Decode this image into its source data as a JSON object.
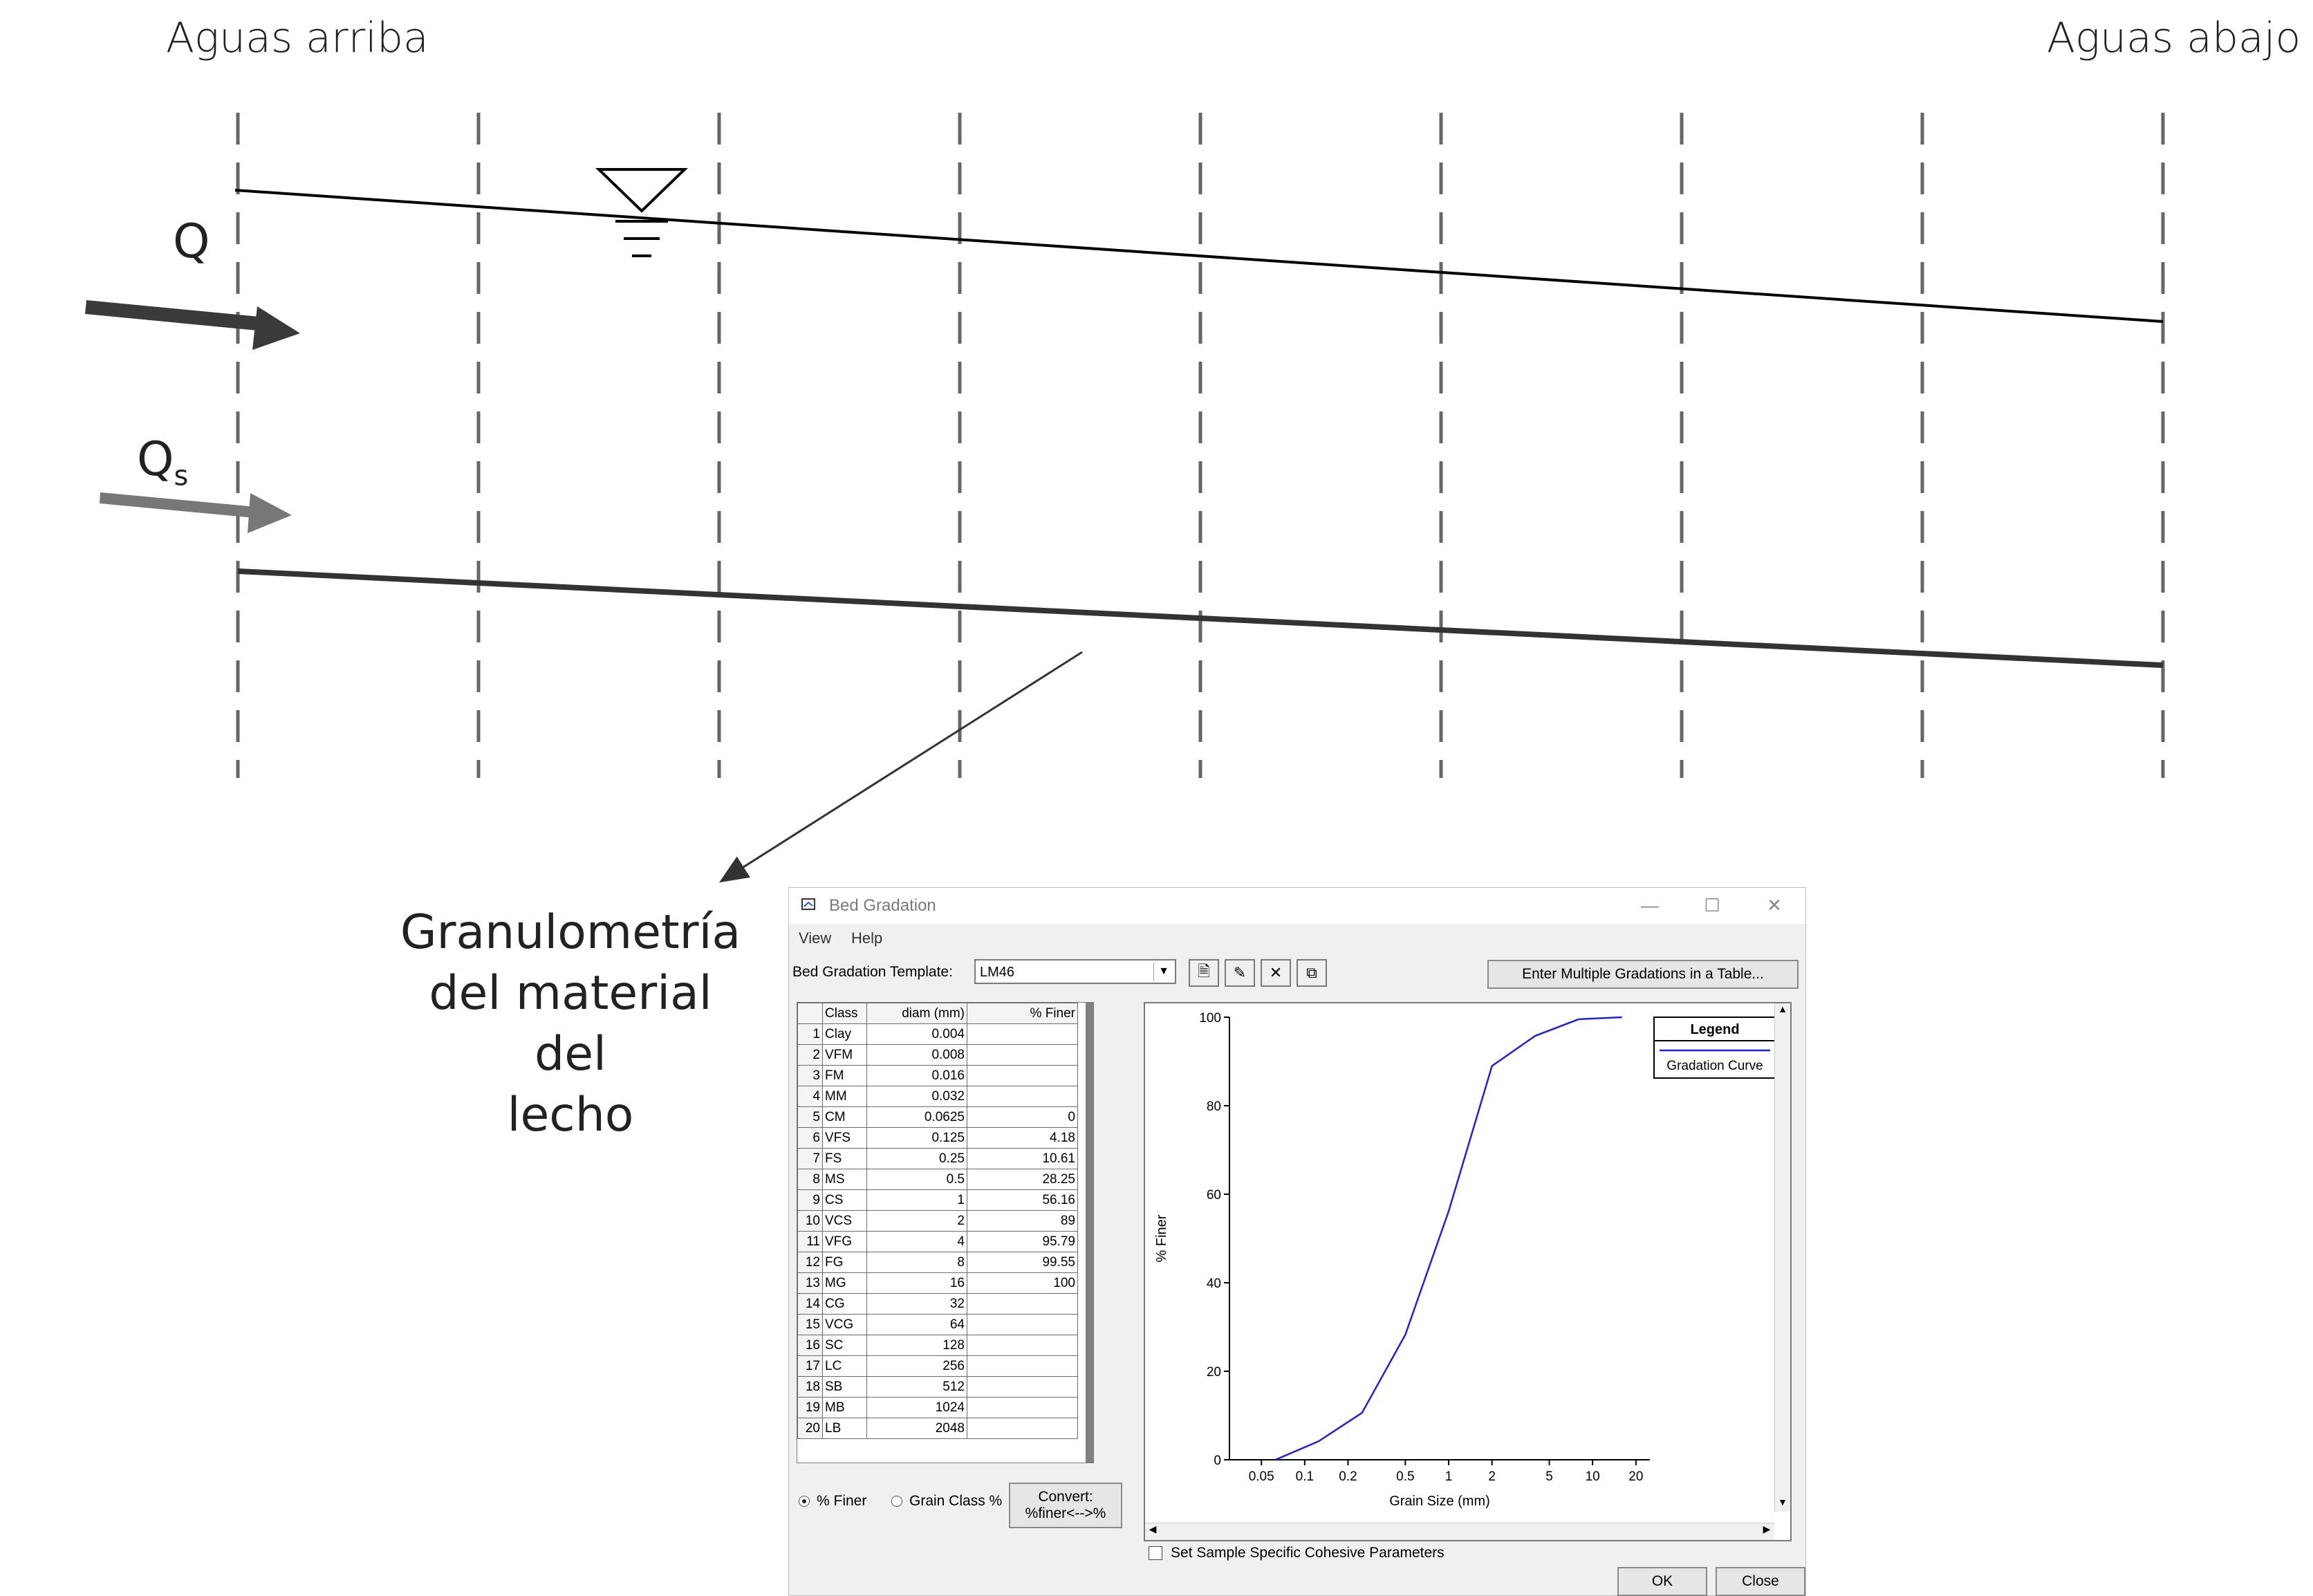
{
  "diagram": {
    "upstream_label": "Aguas arriba",
    "downstream_label": "Aguas abajo",
    "discharge_label": "Q",
    "sediment_label_main": "Q",
    "sediment_label_sub": "s",
    "caption_lines": [
      "Granulometría",
      "del material del",
      "lecho"
    ]
  },
  "window": {
    "title": "Bed Gradation",
    "menu": [
      "View",
      "Help"
    ],
    "template_label": "Bed Gradation Template:",
    "template_value": "LM46",
    "toolbar_icons": [
      "new-document-icon",
      "rename-icon",
      "delete-icon",
      "copy-icon"
    ],
    "multi_button": "Enter Multiple Gradations in a Table...",
    "table": {
      "headers": [
        "",
        "Class",
        "diam (mm)",
        "% Finer"
      ],
      "rows": [
        [
          "1",
          "Clay",
          "0.004",
          ""
        ],
        [
          "2",
          "VFM",
          "0.008",
          ""
        ],
        [
          "3",
          "FM",
          "0.016",
          ""
        ],
        [
          "4",
          "MM",
          "0.032",
          ""
        ],
        [
          "5",
          "CM",
          "0.0625",
          "0"
        ],
        [
          "6",
          "VFS",
          "0.125",
          "4.18"
        ],
        [
          "7",
          "FS",
          "0.25",
          "10.61"
        ],
        [
          "8",
          "MS",
          "0.5",
          "28.25"
        ],
        [
          "9",
          "CS",
          "1",
          "56.16"
        ],
        [
          "10",
          "VCS",
          "2",
          "89"
        ],
        [
          "11",
          "VFG",
          "4",
          "95.79"
        ],
        [
          "12",
          "FG",
          "8",
          "99.55"
        ],
        [
          "13",
          "MG",
          "16",
          "100"
        ],
        [
          "14",
          "CG",
          "32",
          ""
        ],
        [
          "15",
          "VCG",
          "64",
          ""
        ],
        [
          "16",
          "SC",
          "128",
          ""
        ],
        [
          "17",
          "LC",
          "256",
          ""
        ],
        [
          "18",
          "SB",
          "512",
          ""
        ],
        [
          "19",
          "MB",
          "1024",
          ""
        ],
        [
          "20",
          "LB",
          "2048",
          ""
        ]
      ]
    },
    "radio_finer": "% Finer",
    "radio_grain": "Grain Class %",
    "convert_line1": "Convert:",
    "convert_line2": "%finer<-->%",
    "cohesive_checkbox": "Set Sample Specific Cohesive Parameters",
    "ok": "OK",
    "close": "Close"
  },
  "chart_data": {
    "type": "line",
    "x_scale": "log",
    "xlabel": "Grain Size (mm)",
    "ylabel": "% Finer",
    "x_ticks": [
      "0.05",
      "0.1",
      "0.2",
      "0.5",
      "1",
      "2",
      "5",
      "10",
      "20"
    ],
    "y_ticks": [
      "0",
      "20",
      "40",
      "60",
      "80",
      "100"
    ],
    "ylim": [
      0,
      100
    ],
    "xlim": [
      0.03,
      25
    ],
    "legend_title": "Legend",
    "legend_position": "top-right",
    "line_color": "#2020e0",
    "series": [
      {
        "name": "Gradation Curve",
        "x": [
          0.0625,
          0.125,
          0.25,
          0.5,
          1,
          2,
          4,
          8,
          16
        ],
        "y": [
          0,
          4.18,
          10.61,
          28.25,
          56.16,
          89,
          95.79,
          99.55,
          100
        ]
      }
    ]
  }
}
